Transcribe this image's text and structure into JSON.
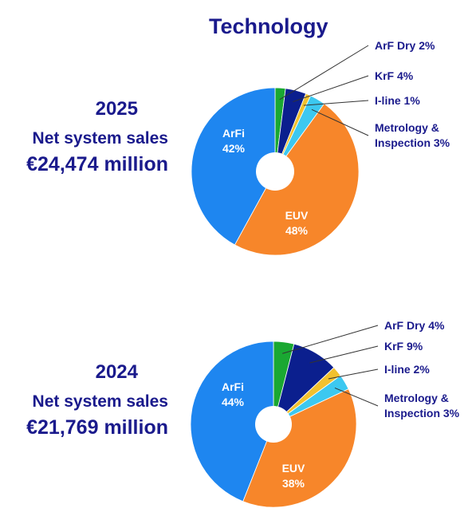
{
  "title": "Technology",
  "colors": {
    "heading": "#1a1a8c",
    "euv": "#f7862a",
    "arfi": "#1e86f0",
    "arf_dry": "#1aa832",
    "krf": "#0b1f8e",
    "i_line": "#f2c12e",
    "metrology": "#3cc8f0"
  },
  "summaries": [
    {
      "year": "2025",
      "label": "Net system sales",
      "amount": "€24,474 million"
    },
    {
      "year": "2024",
      "label": "Net system sales",
      "amount": "€21,769 million"
    }
  ],
  "chart_data": [
    {
      "type": "pie",
      "title": "Technology",
      "year": "2025",
      "slices": [
        {
          "name": "EUV",
          "value": 48,
          "inside_label": [
            "EUV",
            "48%"
          ],
          "color_key": "euv"
        },
        {
          "name": "ArFi",
          "value": 42,
          "inside_label": [
            "ArFi",
            "42%"
          ],
          "color_key": "arfi"
        },
        {
          "name": "ArF Dry",
          "value": 2,
          "callout": "ArF Dry 2%",
          "color_key": "arf_dry"
        },
        {
          "name": "KrF",
          "value": 4,
          "callout": "KrF 4%",
          "color_key": "krf"
        },
        {
          "name": "I-line",
          "value": 1,
          "callout": "I-line 1%",
          "color_key": "i_line"
        },
        {
          "name": "Metrology & Inspection",
          "value": 3,
          "callout": [
            "Metrology &",
            "Inspection 3%"
          ],
          "color_key": "metrology"
        }
      ]
    },
    {
      "type": "pie",
      "year": "2024",
      "slices": [
        {
          "name": "EUV",
          "value": 38,
          "inside_label": [
            "EUV",
            "38%"
          ],
          "color_key": "euv"
        },
        {
          "name": "ArFi",
          "value": 44,
          "inside_label": [
            "ArFi",
            "44%"
          ],
          "color_key": "arfi"
        },
        {
          "name": "ArF Dry",
          "value": 4,
          "callout": "ArF Dry 4%",
          "color_key": "arf_dry"
        },
        {
          "name": "KrF",
          "value": 9,
          "callout": "KrF 9%",
          "color_key": "krf"
        },
        {
          "name": "I-line",
          "value": 2,
          "callout": "I-line 2%",
          "color_key": "i_line"
        },
        {
          "name": "Metrology & Inspection",
          "value": 3,
          "callout": [
            "Metrology &",
            "Inspection 3%"
          ],
          "color_key": "metrology"
        }
      ]
    }
  ]
}
